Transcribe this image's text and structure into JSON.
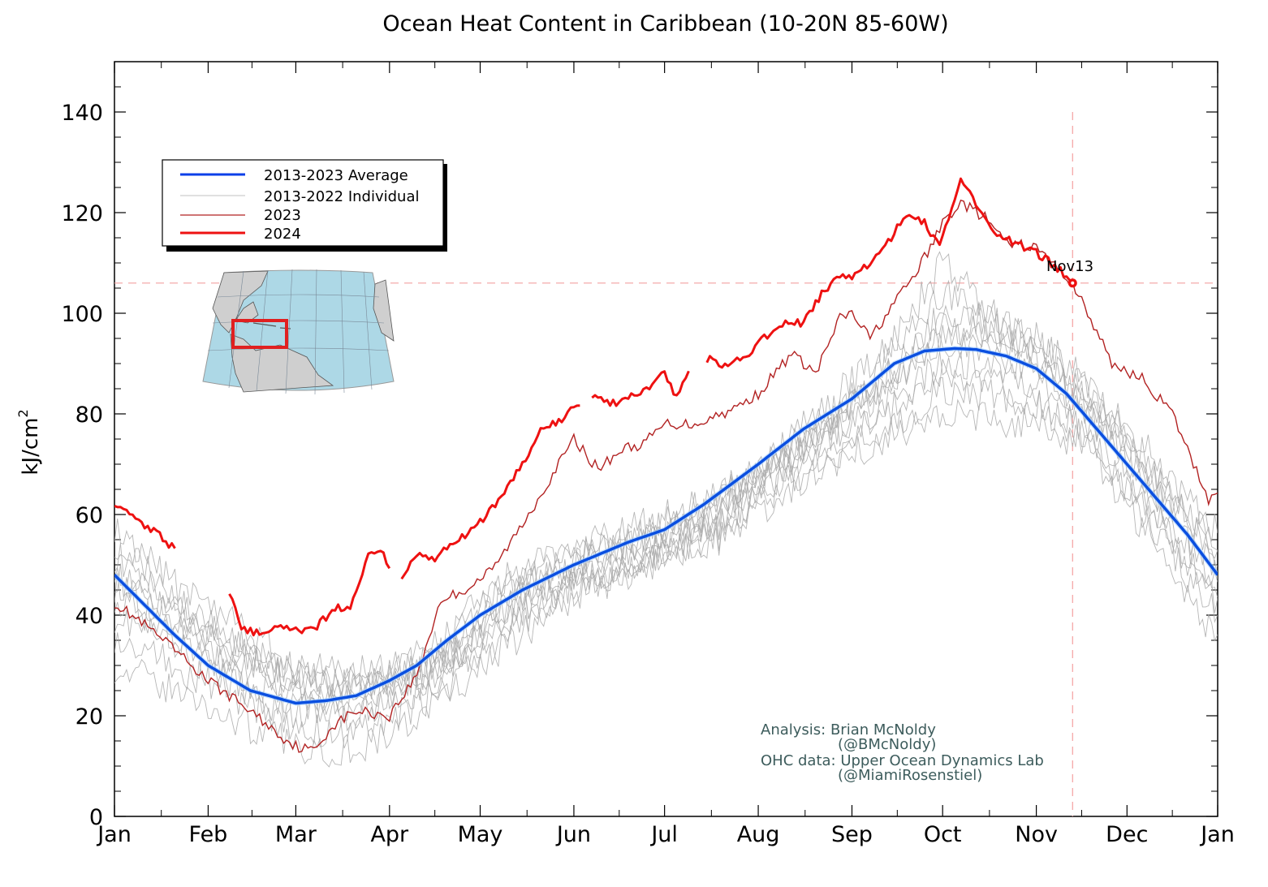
{
  "chart_data": {
    "type": "line",
    "title": "Ocean Heat Content in Caribbean (10-20N 85-60W)",
    "xlabel": "",
    "ylabel": "kJ/cm",
    "ylabel_superscript": "2",
    "ylim": [
      0,
      150
    ],
    "yticks": [
      0,
      20,
      40,
      60,
      80,
      100,
      120,
      140
    ],
    "xlim": [
      0,
      365
    ],
    "month_labels": [
      "Jan",
      "Feb",
      "Mar",
      "Apr",
      "May",
      "Jun",
      "Jul",
      "Aug",
      "Sep",
      "Oct",
      "Nov",
      "Dec",
      "Jan"
    ],
    "month_days": [
      0,
      31,
      60,
      91,
      121,
      152,
      182,
      213,
      244,
      274,
      305,
      335,
      365
    ],
    "legend": {
      "position": "upper-left",
      "entries": [
        {
          "label": "2013-2023 Average",
          "color": "#0b3fe8"
        },
        {
          "label": "2013-2022 Individual",
          "color": "#c0c0c0"
        },
        {
          "label": "2023",
          "color": "#b22222"
        },
        {
          "label": "2024",
          "color": "#ee1111"
        }
      ]
    },
    "annotation": {
      "label": "Nov13",
      "day": 317,
      "value": 106
    },
    "credits": [
      "Analysis: Brian McNoldy",
      "(@BMcNoldy)",
      "OHC data: Upper Ocean Dynamics Lab",
      "(@MiamiRosenstiel)"
    ],
    "series": [
      {
        "name": "2013-2023 Average",
        "color": "#0b4fe0",
        "x": [
          0,
          10,
          20,
          31,
          45,
          60,
          70,
          80,
          91,
          100,
          110,
          121,
          135,
          152,
          170,
          182,
          195,
          213,
          228,
          244,
          258,
          268,
          278,
          285,
          295,
          305,
          315,
          325,
          335,
          345,
          355,
          365
        ],
        "values": [
          48,
          42,
          36,
          30,
          25,
          22.5,
          23,
          24,
          27,
          30,
          35,
          40,
          45,
          50,
          54.5,
          57,
          62,
          70,
          77,
          83,
          90,
          92.5,
          93,
          92.8,
          91.5,
          89,
          84,
          77,
          70,
          63,
          56,
          48
        ]
      },
      {
        "name": "2023",
        "color": "#b22222",
        "x": [
          0,
          10,
          20,
          31,
          45,
          55,
          60,
          66,
          72,
          80,
          91,
          100,
          108,
          116,
          125,
          135,
          145,
          152,
          160,
          168,
          175,
          182,
          192,
          205,
          213,
          224,
          232,
          240,
          244,
          250,
          258,
          264,
          270,
          274,
          280,
          288,
          295,
          305,
          312,
          317,
          322,
          330,
          340,
          350,
          357,
          362,
          365
        ],
        "values": [
          42.5,
          38,
          33,
          27,
          21,
          16,
          14,
          13,
          18,
          21,
          20,
          28,
          43,
          45,
          49,
          58,
          68,
          75,
          69,
          73,
          74,
          78,
          78,
          81,
          84,
          92,
          88,
          99,
          100,
          95,
          102,
          107,
          113,
          118,
          122,
          119,
          114,
          113,
          109,
          106,
          100,
          90,
          87,
          80,
          70,
          63,
          65
        ]
      },
      {
        "name": "2024",
        "color": "#ee1111",
        "segments": [
          {
            "x": [
              0,
              5,
              10,
              15,
              20
            ],
            "values": [
              62.5,
              60,
              58,
              56,
              53
            ]
          },
          {
            "x": [
              38,
              42,
              48,
              55,
              60,
              66,
              72,
              78,
              84,
              88,
              91
            ],
            "values": [
              45,
              37,
              36.5,
              38,
              37,
              37,
              41,
              42,
              52,
              53,
              50
            ]
          },
          {
            "x": [
              95,
              100,
              106,
              112,
              120,
              128,
              135,
              141,
              148,
              154
            ],
            "values": [
              48,
              52,
              51.5,
              54,
              58,
              63,
              70,
              77,
              79,
              82
            ]
          },
          {
            "x": [
              158,
              164,
              170,
              176,
              182,
              186,
              190
            ],
            "values": [
              84,
              82,
              83,
              85,
              88,
              83,
              88
            ]
          },
          {
            "x": [
              196,
              202,
              208,
              213,
              220,
              228,
              234,
              240,
              244,
              250,
              256,
              262,
              268,
              273,
              280,
              286,
              292,
              298,
              305,
              312,
              317
            ],
            "values": [
              91,
              89.5,
              91,
              94,
              98,
              98,
              104,
              107,
              107,
              110,
              114,
              120,
              118,
              113,
              126,
              121,
              116,
              114,
              112,
              109,
              106
            ]
          }
        ]
      },
      {
        "name": "2013-2022 Individual",
        "color": "#a9a9a9",
        "lines": [
          {
            "x": [
              0,
              20,
              40,
              60,
              75,
              91,
              110,
              130,
              152,
              175,
              200,
              225,
              250,
              274,
              290,
              305,
              320,
              340,
              365
            ],
            "values": [
              40,
              34,
              26,
              20,
              22,
              24,
              30,
              42,
              48,
              51,
              60,
              72,
              80,
              88,
              86,
              82,
              76,
              62,
              42
            ]
          },
          {
            "x": [
              0,
              20,
              40,
              60,
              75,
              91,
              110,
              130,
              152,
              175,
              200,
              225,
              250,
              274,
              290,
              305,
              320,
              340,
              365
            ],
            "values": [
              30,
              25,
              19,
              14,
              13,
              16,
              24,
              34,
              44,
              49,
              58,
              67,
              74,
              80,
              79,
              78,
              74,
              58,
              35
            ]
          },
          {
            "x": [
              0,
              20,
              40,
              60,
              75,
              91,
              110,
              130,
              152,
              175,
              200,
              225,
              250,
              274,
              290,
              305,
              320,
              340,
              365
            ],
            "values": [
              55,
              44,
              34,
              27,
              25,
              26,
              32,
              44,
              50,
              54,
              62,
              76,
              90,
              104,
              98,
              92,
              84,
              70,
              52
            ]
          },
          {
            "x": [
              0,
              20,
              40,
              60,
              75,
              91,
              110,
              130,
              152,
              175,
              200,
              225,
              250,
              274,
              290,
              305,
              320,
              340,
              365
            ],
            "values": [
              46,
              38,
              31,
              24,
              22,
              22,
              28,
              38,
              47,
              52,
              58,
              70,
              82,
              96,
              95,
              90,
              82,
              66,
              46
            ]
          },
          {
            "x": [
              0,
              20,
              40,
              60,
              75,
              91,
              110,
              130,
              152,
              175,
              200,
              225,
              250,
              274,
              290,
              305,
              320,
              340,
              365
            ],
            "values": [
              58,
              46,
              38,
              30,
              28,
              30,
              36,
              48,
              53,
              58,
              63,
              74,
              84,
              100,
              98,
              95,
              88,
              74,
              56
            ]
          },
          {
            "x": [
              0,
              20,
              40,
              60,
              75,
              91,
              110,
              130,
              152,
              175,
              200,
              225,
              250,
              274,
              290,
              305,
              320,
              340,
              365
            ],
            "values": [
              36,
              30,
              24,
              18,
              16,
              19,
              26,
              36,
              45,
              50,
              55,
              66,
              76,
              84,
              84,
              82,
              78,
              60,
              40
            ]
          },
          {
            "x": [
              0,
              20,
              40,
              60,
              75,
              91,
              110,
              130,
              152,
              175,
              200,
              225,
              250,
              274,
              290,
              305,
              320,
              340,
              365
            ],
            "values": [
              50,
              40,
              34,
              28,
              26,
              28,
              34,
              46,
              52,
              56,
              64,
              74,
              86,
              110,
              100,
              94,
              86,
              72,
              50
            ]
          },
          {
            "x": [
              0,
              20,
              40,
              60,
              75,
              91,
              110,
              130,
              152,
              175,
              200,
              225,
              250,
              274,
              290,
              305,
              320,
              340,
              365
            ],
            "values": [
              44,
              36,
              28,
              22,
              20,
              23,
              30,
              40,
              46,
              50,
              56,
              68,
              78,
              90,
              90,
              86,
              80,
              64,
              44
            ]
          },
          {
            "x": [
              0,
              20,
              40,
              60,
              75,
              91,
              110,
              130,
              152,
              175,
              200,
              225,
              250,
              274,
              290,
              305,
              320,
              340,
              365
            ],
            "values": [
              52,
              42,
              35,
              29,
              27,
              25,
              31,
              42,
              49,
              54,
              60,
              72,
              84,
              98,
              96,
              90,
              84,
              68,
              48
            ]
          },
          {
            "x": [
              0,
              20,
              40,
              60,
              75,
              91,
              110,
              130,
              152,
              175,
              200,
              225,
              250,
              274,
              290,
              305,
              320,
              340,
              365
            ],
            "values": [
              48,
              40,
              32,
              26,
              24,
              27,
              33,
              45,
              51,
              55,
              61,
              73,
              85,
              94,
              92,
              88,
              82,
              70,
              54
            ]
          }
        ]
      }
    ]
  }
}
